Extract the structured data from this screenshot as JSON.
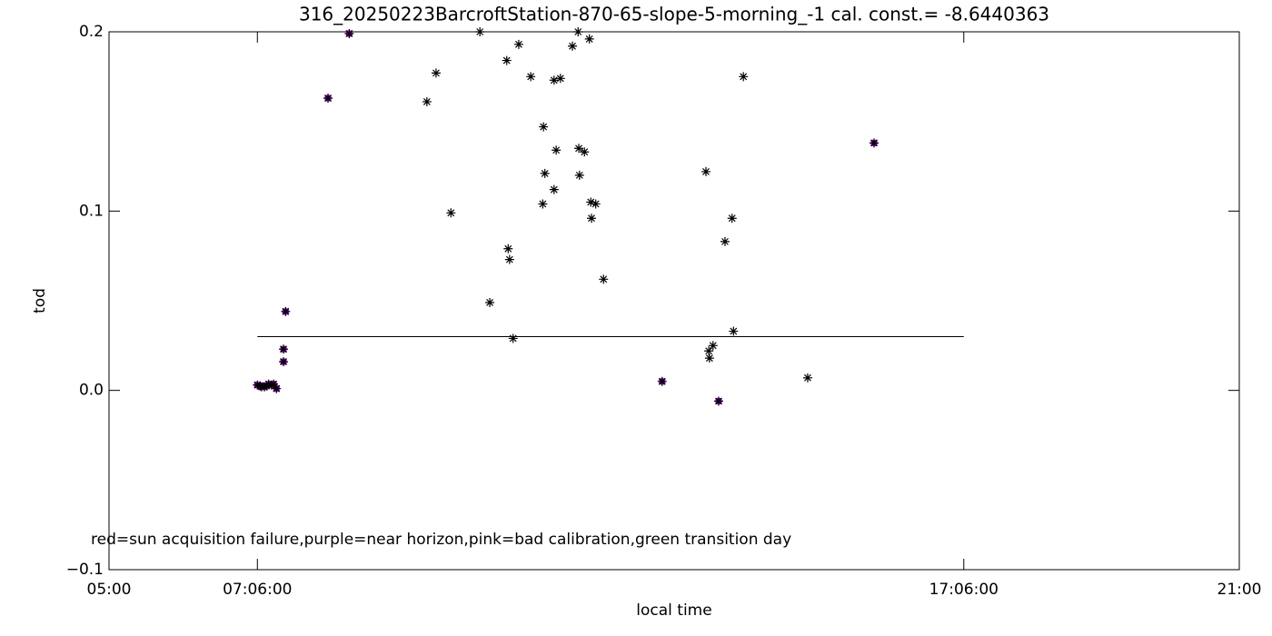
{
  "chart_data": {
    "type": "scatter",
    "title": "316_20250223BarcroftStation-870-65-slope-5-morning_-1 cal. const.= -8.6440363",
    "x_label": "local time",
    "y_label": "tod",
    "annotation": "red=sun acquisition failure,purple=near horizon,pink=bad calibration,green transition day",
    "xlim": [
      5,
      21
    ],
    "ylim": [
      -0.1,
      0.2
    ],
    "xticks": [
      {
        "value": 5,
        "label": "05:00"
      },
      {
        "value": 7.1,
        "label": "07:06:00"
      },
      {
        "value": 17.1,
        "label": "17:06:00"
      },
      {
        "value": 21,
        "label": "21:00"
      }
    ],
    "yticks": [
      {
        "value": -0.1,
        "label": "−0.1"
      },
      {
        "value": 0,
        "label": "0.0"
      },
      {
        "value": 0.1,
        "label": "0.1"
      },
      {
        "value": 0.2,
        "label": "0.2"
      }
    ],
    "reference_line": {
      "x": [
        7.1,
        17.1
      ],
      "y": [
        0.03,
        0.03
      ],
      "color": "#000000"
    },
    "series": [
      {
        "color": "#000000",
        "marker": "asterisk",
        "x": [
          7.1,
          7.14,
          7.16,
          7.2,
          7.23,
          7.26,
          7.3,
          7.33,
          7.37,
          7.47,
          7.47,
          7.5,
          8.1,
          8.4,
          9.5,
          9.63,
          9.84,
          10.25,
          10.39,
          10.63,
          10.65,
          10.67,
          10.72,
          10.8,
          10.97,
          11.14,
          11.15,
          11.17,
          11.3,
          11.3,
          11.33,
          11.39,
          11.56,
          11.64,
          11.65,
          11.66,
          11.73,
          11.8,
          11.82,
          11.83,
          11.89,
          12.0,
          12.83,
          13.45,
          13.49,
          13.5,
          13.55,
          13.63,
          13.72,
          13.82,
          13.84,
          13.98,
          14.89,
          15.83
        ],
        "values": [
          0.003,
          0.0025,
          0.002,
          0.002,
          0.0025,
          0.0035,
          0.003,
          0.0035,
          0.001,
          0.016,
          0.023,
          0.044,
          0.163,
          0.199,
          0.161,
          0.177,
          0.099,
          0.2,
          0.049,
          0.184,
          0.079,
          0.073,
          0.029,
          0.193,
          0.175,
          0.104,
          0.147,
          0.121,
          0.112,
          0.173,
          0.134,
          0.174,
          0.192,
          0.2,
          0.135,
          0.12,
          0.133,
          0.196,
          0.105,
          0.096,
          0.104,
          0.062,
          0.005,
          0.122,
          0.022,
          0.018,
          0.025,
          -0.006,
          0.083,
          0.096,
          0.033,
          0.175,
          0.007,
          0.138
        ]
      },
      {
        "color": "#9900cc",
        "marker": "square",
        "x": [
          7.1,
          7.14,
          7.16,
          7.2,
          7.23,
          7.26,
          7.3,
          7.33,
          7.37,
          7.47,
          7.47,
          7.5,
          8.1,
          8.4,
          12.83,
          13.63,
          15.83
        ],
        "values": [
          0.003,
          0.0025,
          0.002,
          0.002,
          0.0025,
          0.0035,
          0.003,
          0.0035,
          0.001,
          0.016,
          0.023,
          0.044,
          0.163,
          0.199,
          0.005,
          -0.006,
          0.138
        ]
      }
    ]
  }
}
